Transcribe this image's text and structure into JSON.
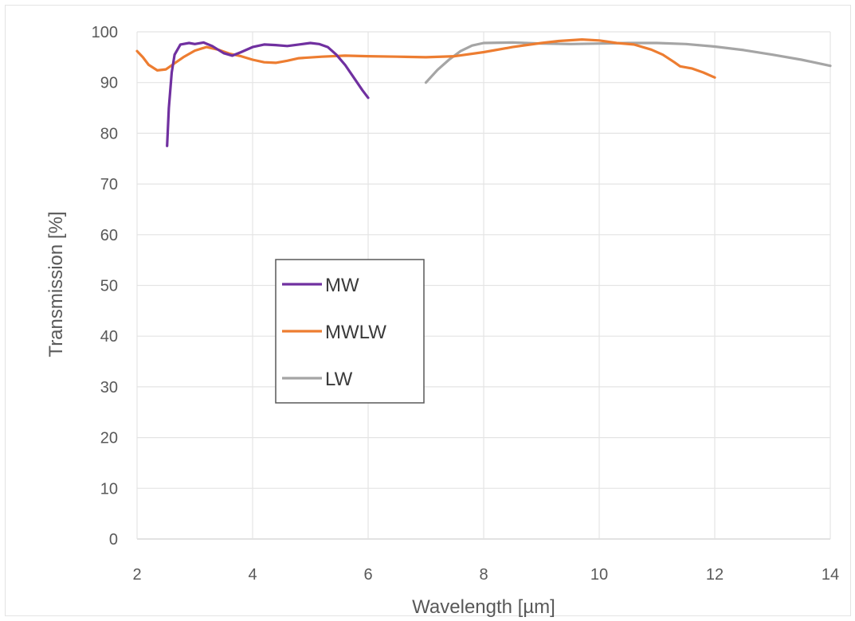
{
  "chart_data": {
    "type": "line",
    "title": "",
    "xlabel": "Wavelength [µm]",
    "ylabel": "Transmission [%]",
    "xlim": [
      2,
      14
    ],
    "ylim": [
      0,
      100
    ],
    "xticks": [
      2,
      4,
      6,
      8,
      10,
      12,
      14
    ],
    "yticks": [
      0,
      10,
      20,
      30,
      40,
      50,
      60,
      70,
      80,
      90,
      100
    ],
    "grid": true,
    "legend_position": "middle-left",
    "series": [
      {
        "name": "MW",
        "color": "#7030a0",
        "points": [
          [
            2.52,
            77.5
          ],
          [
            2.55,
            85
          ],
          [
            2.6,
            92
          ],
          [
            2.65,
            95.5
          ],
          [
            2.75,
            97.5
          ],
          [
            2.9,
            97.8
          ],
          [
            3.0,
            97.6
          ],
          [
            3.15,
            97.9
          ],
          [
            3.3,
            97.2
          ],
          [
            3.5,
            95.8
          ],
          [
            3.65,
            95.3
          ],
          [
            3.8,
            96
          ],
          [
            4.0,
            97
          ],
          [
            4.2,
            97.5
          ],
          [
            4.4,
            97.4
          ],
          [
            4.6,
            97.2
          ],
          [
            4.8,
            97.5
          ],
          [
            5.0,
            97.8
          ],
          [
            5.15,
            97.6
          ],
          [
            5.3,
            97
          ],
          [
            5.45,
            95.5
          ],
          [
            5.6,
            93.5
          ],
          [
            5.75,
            91
          ],
          [
            5.9,
            88.5
          ],
          [
            6.0,
            87
          ]
        ]
      },
      {
        "name": "MWLW",
        "color": "#ed7d31",
        "points": [
          [
            2.0,
            96.2
          ],
          [
            2.1,
            95
          ],
          [
            2.2,
            93.5
          ],
          [
            2.35,
            92.4
          ],
          [
            2.5,
            92.6
          ],
          [
            2.65,
            93.8
          ],
          [
            2.8,
            95
          ],
          [
            3.0,
            96.3
          ],
          [
            3.2,
            97
          ],
          [
            3.4,
            96.5
          ],
          [
            3.6,
            95.7
          ],
          [
            3.8,
            95.2
          ],
          [
            4.0,
            94.5
          ],
          [
            4.2,
            94
          ],
          [
            4.4,
            93.9
          ],
          [
            4.6,
            94.3
          ],
          [
            4.8,
            94.8
          ],
          [
            5.2,
            95.1
          ],
          [
            5.6,
            95.3
          ],
          [
            6.0,
            95.2
          ],
          [
            6.5,
            95.1
          ],
          [
            7.0,
            95
          ],
          [
            7.5,
            95.2
          ],
          [
            8.0,
            96
          ],
          [
            8.5,
            97
          ],
          [
            9.0,
            97.8
          ],
          [
            9.3,
            98.2
          ],
          [
            9.7,
            98.5
          ],
          [
            10.0,
            98.3
          ],
          [
            10.3,
            97.8
          ],
          [
            10.6,
            97.5
          ],
          [
            10.9,
            96.5
          ],
          [
            11.1,
            95.5
          ],
          [
            11.3,
            94
          ],
          [
            11.4,
            93.2
          ],
          [
            11.6,
            92.8
          ],
          [
            11.8,
            92
          ],
          [
            12.0,
            91
          ]
        ]
      },
      {
        "name": "LW",
        "color": "#a5a5a5",
        "points": [
          [
            7.0,
            90
          ],
          [
            7.2,
            92.5
          ],
          [
            7.4,
            94.5
          ],
          [
            7.6,
            96.2
          ],
          [
            7.8,
            97.3
          ],
          [
            8.0,
            97.8
          ],
          [
            8.5,
            97.9
          ],
          [
            9.0,
            97.7
          ],
          [
            9.5,
            97.6
          ],
          [
            10.0,
            97.7
          ],
          [
            10.5,
            97.8
          ],
          [
            11.0,
            97.8
          ],
          [
            11.5,
            97.6
          ],
          [
            12.0,
            97.1
          ],
          [
            12.5,
            96.4
          ],
          [
            13.0,
            95.5
          ],
          [
            13.5,
            94.5
          ],
          [
            14.0,
            93.3
          ]
        ]
      }
    ]
  }
}
